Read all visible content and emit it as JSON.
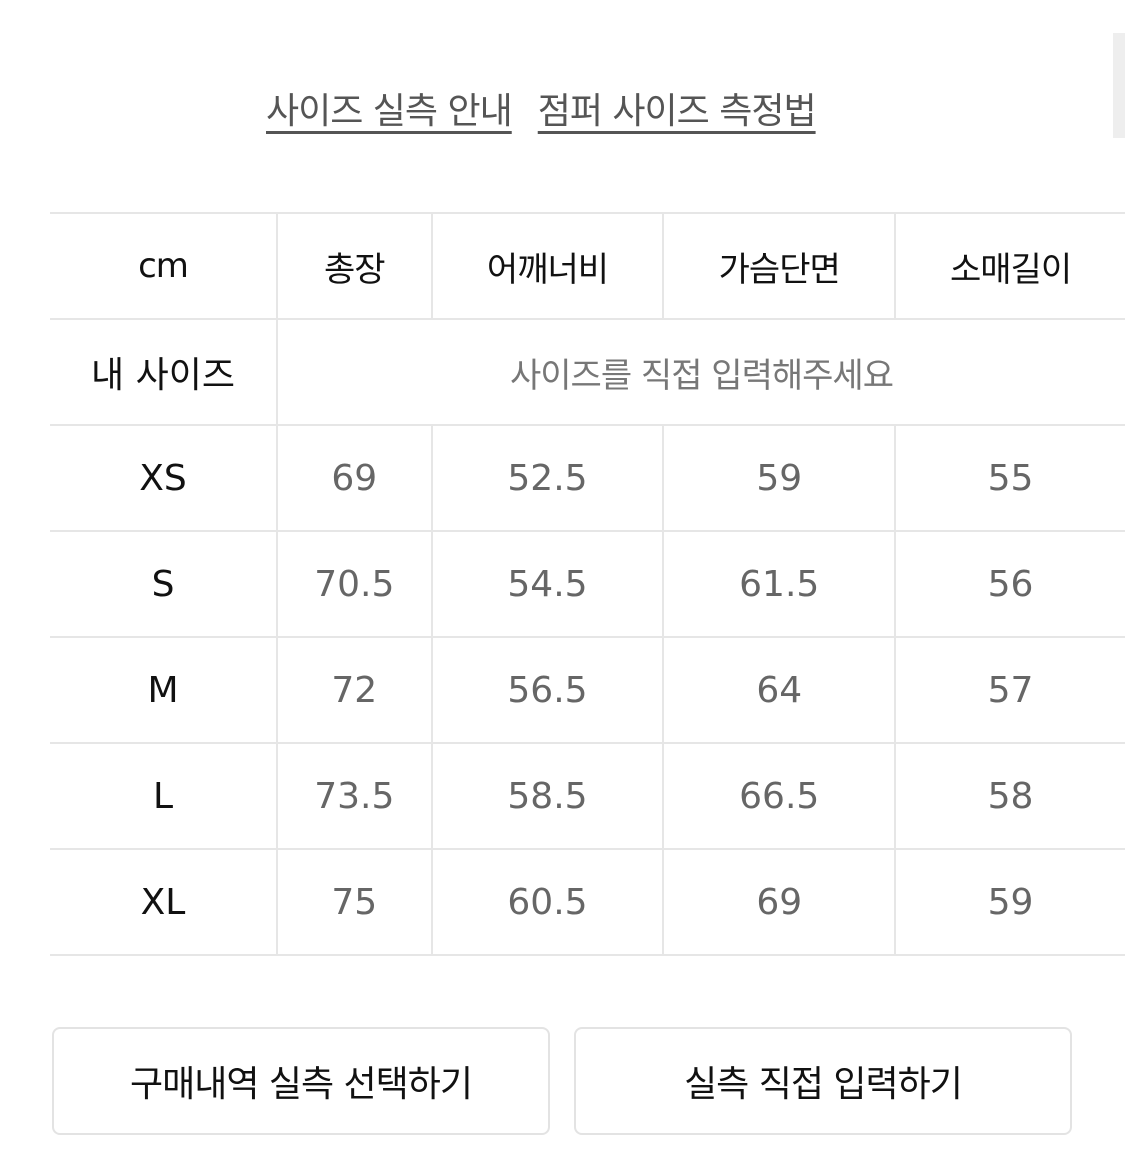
{
  "links": [
    "사이즈 실측 안내",
    "점퍼 사이즈 측정법"
  ],
  "table": {
    "headers": [
      "cm",
      "총장",
      "어깨너비",
      "가슴단면",
      "소매길이"
    ],
    "my_size": {
      "label": "내 사이즈",
      "placeholder": "사이즈를 직접 입력해주세요"
    },
    "rows": [
      {
        "size": "XS",
        "values": [
          "69",
          "52.5",
          "59",
          "55"
        ]
      },
      {
        "size": "S",
        "values": [
          "70.5",
          "54.5",
          "61.5",
          "56"
        ]
      },
      {
        "size": "M",
        "values": [
          "72",
          "56.5",
          "64",
          "57"
        ]
      },
      {
        "size": "L",
        "values": [
          "73.5",
          "58.5",
          "66.5",
          "58"
        ]
      },
      {
        "size": "XL",
        "values": [
          "75",
          "60.5",
          "69",
          "59"
        ]
      }
    ]
  },
  "buttons": {
    "purchase_history": "구매내역 실측 선택하기",
    "manual_input": "실측 직접 입력하기"
  }
}
